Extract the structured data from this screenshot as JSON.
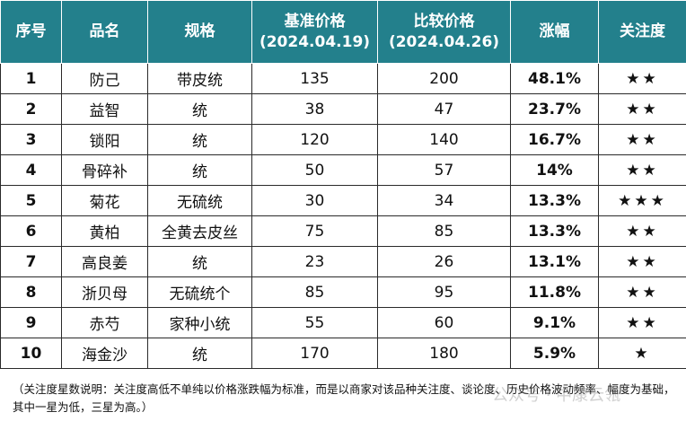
{
  "header": {
    "num": "序号",
    "name": "品名",
    "spec": "规格",
    "base_label": "基准价格",
    "base_date": "(2024.04.19)",
    "compare_label": "比较价格",
    "compare_date": "(2024.04.26)",
    "change": "涨幅",
    "attention": "关注度"
  },
  "rows": [
    {
      "num": "1",
      "name": "防己",
      "spec": "带皮统",
      "base": "135",
      "compare": "200",
      "change": "48.1%",
      "stars": "★★",
      "attention_level": 2
    },
    {
      "num": "2",
      "name": "益智",
      "spec": "统",
      "base": "38",
      "compare": "47",
      "change": "23.7%",
      "stars": "★★",
      "attention_level": 2
    },
    {
      "num": "3",
      "name": "锁阳",
      "spec": "统",
      "base": "120",
      "compare": "140",
      "change": "16.7%",
      "stars": "★★",
      "attention_level": 2
    },
    {
      "num": "4",
      "name": "骨碎补",
      "spec": "统",
      "base": "50",
      "compare": "57",
      "change": "14%",
      "stars": "★★",
      "attention_level": 2
    },
    {
      "num": "5",
      "name": "菊花",
      "spec": "无硫统",
      "base": "30",
      "compare": "34",
      "change": "13.3%",
      "stars": "★★★",
      "attention_level": 3
    },
    {
      "num": "6",
      "name": "黄柏",
      "spec": "全黄去皮丝",
      "base": "75",
      "compare": "85",
      "change": "13.3%",
      "stars": "★★",
      "attention_level": 2
    },
    {
      "num": "7",
      "name": "高良姜",
      "spec": "统",
      "base": "23",
      "compare": "26",
      "change": "13.1%",
      "stars": "★★",
      "attention_level": 2
    },
    {
      "num": "8",
      "name": "浙贝母",
      "spec": "无硫统个",
      "base": "85",
      "compare": "95",
      "change": "11.8%",
      "stars": "★★",
      "attention_level": 2
    },
    {
      "num": "9",
      "name": "赤芍",
      "spec": "家种小统",
      "base": "55",
      "compare": "60",
      "change": "9.1%",
      "stars": "★★",
      "attention_level": 2
    },
    {
      "num": "10",
      "name": "海金沙",
      "spec": "统",
      "base": "170",
      "compare": "180",
      "change": "5.9%",
      "stars": "★",
      "attention_level": 1
    }
  ],
  "note": "（关注度星数说明：关注度高低不单纯以价格涨跌幅为标准，而是以商家对该品种关注度、谈论度、历史价格波动频率、幅度为基础，其中一星为低，三星为高。）",
  "watermark": "公众号 · 中康云瓴",
  "colors": {
    "header_bg": "#23808c",
    "change_text": "#e00000",
    "star": "#f2a93b"
  }
}
